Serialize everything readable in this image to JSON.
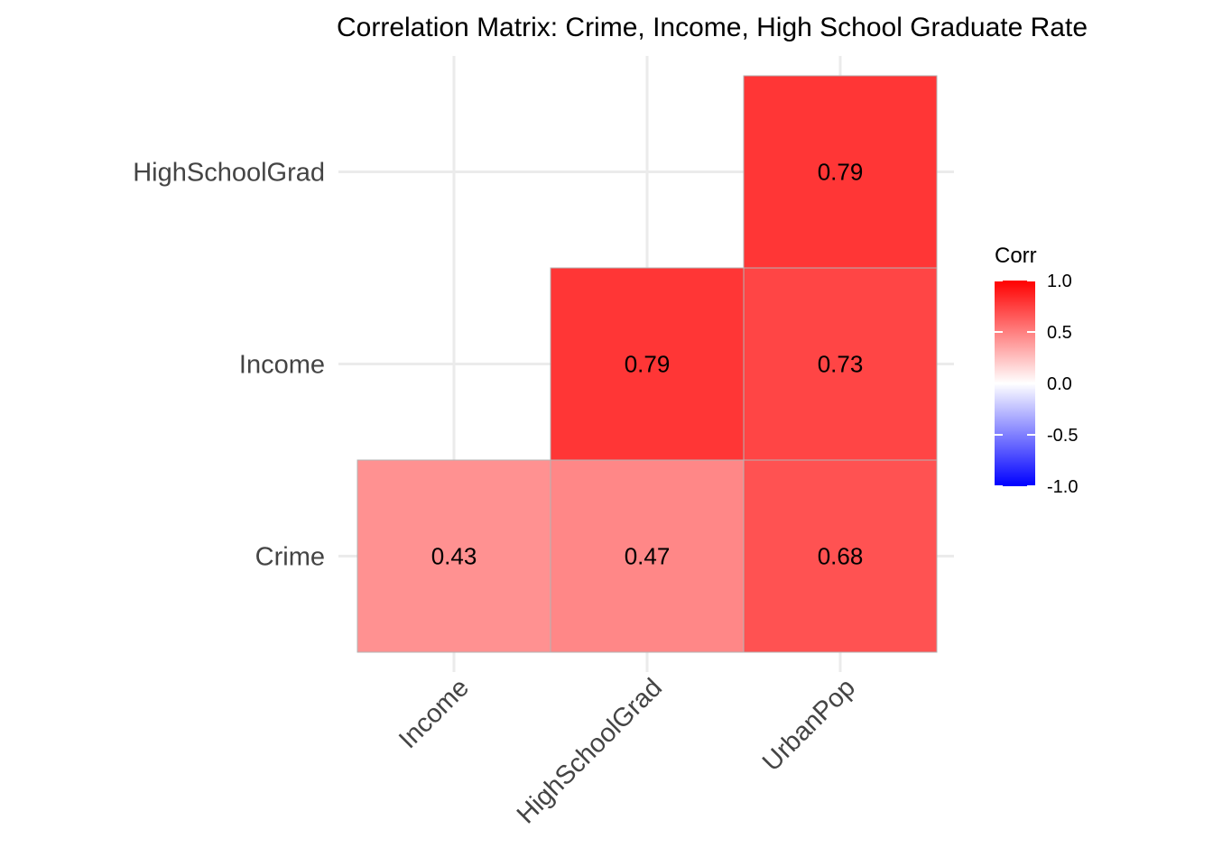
{
  "chart_data": {
    "type": "heatmap",
    "title": "Correlation Matrix: Crime, Income, High School Graduate Rate",
    "x_categories": [
      "Income",
      "HighSchoolGrad",
      "UrbanPop"
    ],
    "y_categories": [
      "Crime",
      "Income",
      "HighSchoolGrad"
    ],
    "cells": [
      {
        "row": "Crime",
        "col": "Income",
        "value": 0.43
      },
      {
        "row": "Crime",
        "col": "HighSchoolGrad",
        "value": 0.47
      },
      {
        "row": "Crime",
        "col": "UrbanPop",
        "value": 0.68
      },
      {
        "row": "Income",
        "col": "HighSchoolGrad",
        "value": 0.79
      },
      {
        "row": "Income",
        "col": "UrbanPop",
        "value": 0.73
      },
      {
        "row": "HighSchoolGrad",
        "col": "UrbanPop",
        "value": 0.79
      }
    ],
    "legend": {
      "title": "Corr",
      "position": "right",
      "ticks": [
        "1.0",
        "0.5",
        "0.0",
        "-0.5",
        "-1.0"
      ],
      "range": [
        -1,
        1
      ],
      "colors": {
        "low": "#0000FF",
        "mid": "#FFFFFF",
        "high": "#FF0000"
      }
    },
    "grid": true
  }
}
